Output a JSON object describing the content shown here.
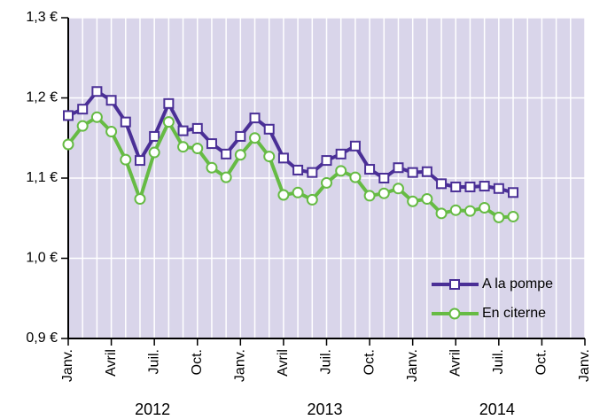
{
  "chart_data": {
    "type": "line",
    "categories": [
      "Janv.",
      null,
      null,
      "Avril",
      null,
      null,
      "Juil.",
      null,
      null,
      "Oct.",
      null,
      null,
      "Janv.",
      null,
      null,
      "Avril",
      null,
      null,
      "Juil.",
      null,
      null,
      "Oct.",
      null,
      null,
      "Janv.",
      null,
      null,
      "Avril",
      null,
      null,
      "Juil.",
      null,
      null,
      "Oct.",
      null,
      null,
      "Janv."
    ],
    "years": [
      "2012",
      "2013",
      "2014"
    ],
    "series": [
      {
        "name": "A la pompe",
        "color": "#4a2f96",
        "marker": "square",
        "values": [
          1.178,
          1.186,
          1.208,
          1.197,
          1.17,
          1.122,
          1.152,
          1.193,
          1.159,
          1.162,
          1.143,
          1.13,
          1.152,
          1.175,
          1.161,
          1.125,
          1.11,
          1.107,
          1.122,
          1.13,
          1.14,
          1.111,
          1.1,
          1.113,
          1.107,
          1.108,
          1.093,
          1.089,
          1.089,
          1.09,
          1.087,
          1.082,
          null,
          null,
          null,
          null,
          null
        ]
      },
      {
        "name": "En citerne",
        "color": "#66bb44",
        "marker": "circle",
        "values": [
          1.142,
          1.165,
          1.176,
          1.158,
          1.123,
          1.074,
          1.132,
          1.17,
          1.139,
          1.137,
          1.113,
          1.101,
          1.129,
          1.15,
          1.127,
          1.079,
          1.082,
          1.073,
          1.094,
          1.109,
          1.101,
          1.078,
          1.081,
          1.087,
          1.071,
          1.074,
          1.056,
          1.06,
          1.059,
          1.063,
          1.051,
          1.052,
          null,
          null,
          null,
          null,
          null
        ]
      }
    ],
    "ylim": [
      0.9,
      1.3
    ],
    "yticks": [
      {
        "value": 0.9,
        "label": "0,9 €"
      },
      {
        "value": 1.0,
        "label": "1,0 €"
      },
      {
        "value": 1.1,
        "label": "1,1 €"
      },
      {
        "value": 1.2,
        "label": "1,2 €"
      },
      {
        "value": 1.3,
        "label": "1,3 €"
      }
    ],
    "grid": true,
    "legend": "lower right"
  }
}
